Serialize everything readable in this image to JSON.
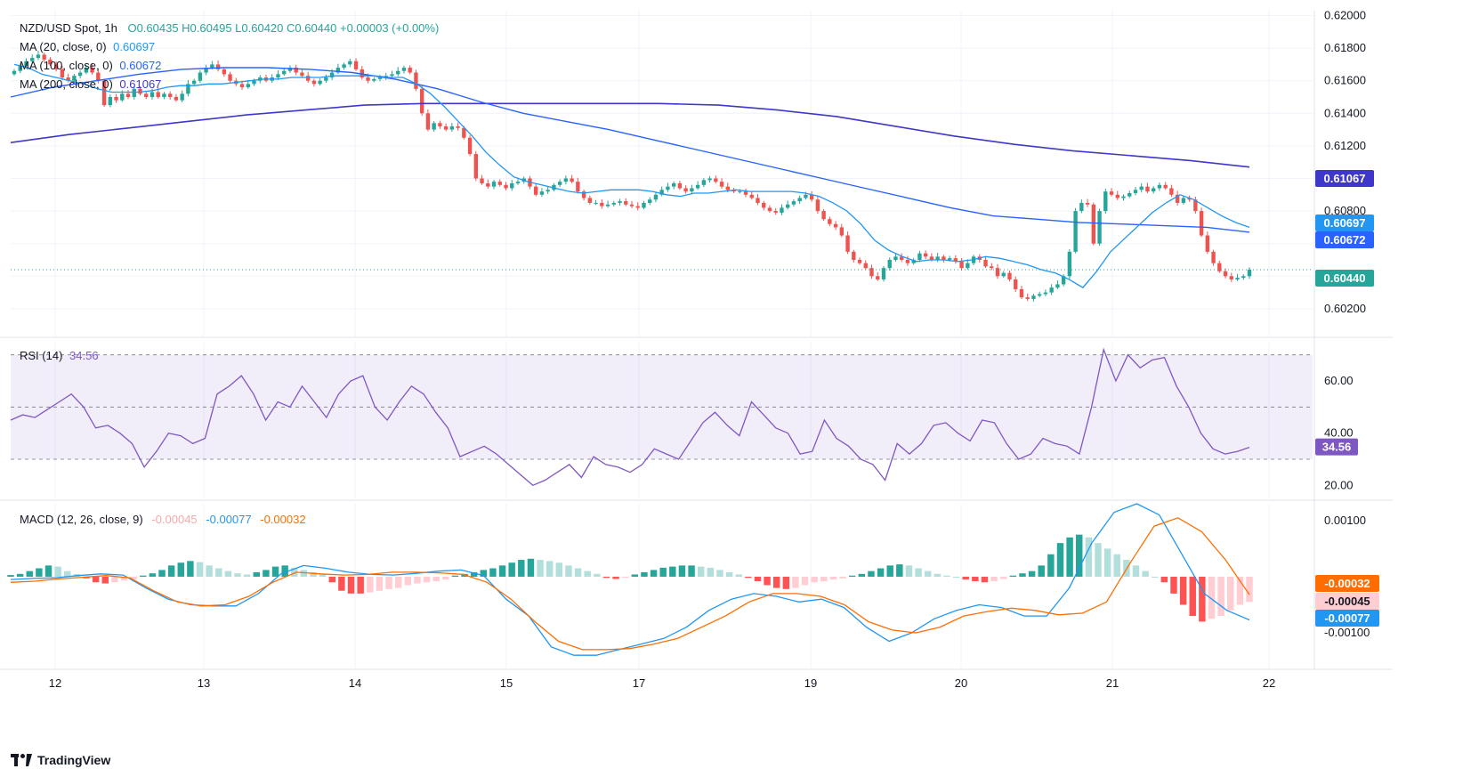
{
  "header": {
    "symbol": "NZD/USD Spot, 1h",
    "ohlc_text": "O0.60435  H0.60495  L0.60420  C0.60440  +0.00003 (+0.00%)",
    "ma20_label": "MA (20, close, 0)",
    "ma20_value": "0.60697",
    "ma100_label": "MA (100, close, 0)",
    "ma100_value": "0.60672",
    "ma200_label": "MA (200, close, 0)",
    "ma200_value": "0.61067"
  },
  "rsi_header": {
    "label": "RSI (14)",
    "value": "34.56"
  },
  "macd_header": {
    "label": "MACD (12, 26, close, 9)",
    "hist": "-0.00045",
    "macd": "-0.00077",
    "signal": "-0.00032"
  },
  "footer": {
    "brand": "TradingView"
  },
  "colors": {
    "up": "#26a69a",
    "down": "#ef5350",
    "ma20": "#2196f3",
    "ma100": "#2962ff",
    "ma200": "#3f37c9",
    "rsi": "#7e57c2",
    "macd": "#2196f3",
    "signal": "#ff6d00",
    "grid": "#f0f3fa",
    "last": "#26a69a"
  },
  "chart_data": [
    {
      "type": "candlestick",
      "title": "NZD/USD Spot, 1h",
      "x_ticks": [
        "12",
        "13",
        "14",
        "15",
        "17",
        "19",
        "20",
        "21",
        "22"
      ],
      "y_ticks": [
        "0.62000",
        "0.61800",
        "0.61600",
        "0.61400",
        "0.61200",
        "0.61000",
        "0.60800",
        "0.60600",
        "0.60400",
        "0.60200"
      ],
      "ylim": [
        0.6003,
        0.6203
      ],
      "price_labels": [
        {
          "value": 0.61067,
          "text": "0.61067",
          "color": "#3f37c9"
        },
        {
          "value": 0.60697,
          "text": "0.60697",
          "color": "#2196f3"
        },
        {
          "value": 0.60672,
          "text": "0.60672",
          "color": "#2962ff"
        },
        {
          "value": 0.6044,
          "text": "0.60440",
          "color": "#26a69a"
        }
      ],
      "close_series": [
        0.6166,
        0.6169,
        0.6172,
        0.6174,
        0.6176,
        0.6173,
        0.617,
        0.6167,
        0.6162,
        0.616,
        0.6163,
        0.6165,
        0.6168,
        0.6165,
        0.616,
        0.6145,
        0.615,
        0.6148,
        0.6152,
        0.615,
        0.6155,
        0.6152,
        0.615,
        0.6153,
        0.615,
        0.6152,
        0.615,
        0.6148,
        0.6152,
        0.6158,
        0.616,
        0.6165,
        0.6168,
        0.617,
        0.6167,
        0.6164,
        0.616,
        0.6158,
        0.6156,
        0.6158,
        0.616,
        0.6162,
        0.616,
        0.6162,
        0.6164,
        0.6166,
        0.6168,
        0.6165,
        0.6163,
        0.616,
        0.6158,
        0.616,
        0.6162,
        0.6165,
        0.6168,
        0.617,
        0.6172,
        0.6167,
        0.6162,
        0.616,
        0.6161,
        0.6162,
        0.6163,
        0.6164,
        0.6166,
        0.6168,
        0.6165,
        0.6155,
        0.614,
        0.613,
        0.6134,
        0.6132,
        0.613,
        0.6132,
        0.6131,
        0.6125,
        0.6115,
        0.61,
        0.6097,
        0.6095,
        0.6098,
        0.6096,
        0.6094,
        0.6097,
        0.6098,
        0.61,
        0.6095,
        0.609,
        0.6092,
        0.6093,
        0.6096,
        0.6098,
        0.61,
        0.6098,
        0.6092,
        0.6088,
        0.6085,
        0.6085,
        0.6083,
        0.6084,
        0.6085,
        0.6086,
        0.6084,
        0.6083,
        0.6082,
        0.6085,
        0.6087,
        0.609,
        0.6093,
        0.6095,
        0.6097,
        0.6094,
        0.6092,
        0.6094,
        0.6096,
        0.6099,
        0.61,
        0.6098,
        0.6095,
        0.6093,
        0.6092,
        0.6092,
        0.609,
        0.6088,
        0.6085,
        0.6082,
        0.608,
        0.6079,
        0.6082,
        0.6084,
        0.6086,
        0.6088,
        0.609,
        0.6087,
        0.608,
        0.6075,
        0.6072,
        0.607,
        0.6065,
        0.6055,
        0.605,
        0.6048,
        0.6045,
        0.604,
        0.6038,
        0.6045,
        0.605,
        0.6052,
        0.605,
        0.6048,
        0.605,
        0.6054,
        0.6052,
        0.605,
        0.6052,
        0.605,
        0.6051,
        0.6049,
        0.6045,
        0.6048,
        0.6052,
        0.605,
        0.6046,
        0.6045,
        0.604,
        0.6042,
        0.6038,
        0.6032,
        0.6027,
        0.6026,
        0.6028,
        0.6029,
        0.603,
        0.6033,
        0.6035,
        0.604,
        0.6055,
        0.608,
        0.6085,
        0.6084,
        0.606,
        0.608,
        0.6092,
        0.609,
        0.6088,
        0.6089,
        0.6091,
        0.6093,
        0.6095,
        0.6092,
        0.6094,
        0.6096,
        0.6094,
        0.609,
        0.6085,
        0.6088,
        0.6087,
        0.608,
        0.6065,
        0.6055,
        0.6048,
        0.6043,
        0.604,
        0.6038,
        0.6039,
        0.604,
        0.6044
      ],
      "ma20_series": [
        0.617,
        0.6168,
        0.6164,
        0.6162,
        0.616,
        0.6158,
        0.6155,
        0.6153,
        0.6153,
        0.6153,
        0.6154,
        0.6156,
        0.6157,
        0.6157,
        0.6158,
        0.6158,
        0.6159,
        0.616,
        0.6161,
        0.6161,
        0.6162,
        0.6162,
        0.6162,
        0.6163,
        0.6163,
        0.6163,
        0.6163,
        0.6162,
        0.6162,
        0.6158,
        0.6152,
        0.6144,
        0.6135,
        0.6126,
        0.6116,
        0.6108,
        0.6101,
        0.6098,
        0.6096,
        0.6094,
        0.6092,
        0.6091,
        0.6092,
        0.6093,
        0.6093,
        0.6093,
        0.6092,
        0.609,
        0.6089,
        0.6091,
        0.6091,
        0.6092,
        0.6093,
        0.6092,
        0.6092,
        0.6092,
        0.6092,
        0.6091,
        0.6089,
        0.6085,
        0.608,
        0.6072,
        0.6062,
        0.6056,
        0.6052,
        0.6049,
        0.605,
        0.605,
        0.6049,
        0.605,
        0.6052,
        0.6051,
        0.6049,
        0.6047,
        0.6044,
        0.6042,
        0.6038,
        0.6033,
        0.6043,
        0.6055,
        0.6063,
        0.6071,
        0.6079,
        0.6085,
        0.609,
        0.6087,
        0.6082,
        0.6077,
        0.6073,
        0.607
      ],
      "ma100_series": [
        0.615,
        0.6156,
        0.616,
        0.6164,
        0.6167,
        0.6168,
        0.6168,
        0.6167,
        0.6165,
        0.6161,
        0.6155,
        0.6147,
        0.614,
        0.6135,
        0.613,
        0.6124,
        0.6118,
        0.6112,
        0.6106,
        0.61,
        0.6094,
        0.6088,
        0.6082,
        0.6077,
        0.6075,
        0.6073,
        0.6072,
        0.6071,
        0.607,
        0.6067
      ],
      "ma200_series": [
        0.6122,
        0.6127,
        0.6131,
        0.6135,
        0.6139,
        0.6142,
        0.6145,
        0.6146,
        0.6146,
        0.6146,
        0.6146,
        0.6146,
        0.6145,
        0.6142,
        0.6138,
        0.6132,
        0.6126,
        0.6121,
        0.6117,
        0.6114,
        0.6111,
        0.6107
      ]
    },
    {
      "type": "line",
      "title": "RSI (14)",
      "y_ticks": [
        "60.00",
        "40.00",
        "20.00"
      ],
      "ylim": [
        15,
        75
      ],
      "bands": {
        "upper": 70,
        "middle": 50,
        "lower": 30
      },
      "last_value": 34.56,
      "values": [
        45,
        47,
        46,
        49,
        52,
        55,
        50,
        42,
        43,
        40,
        36,
        27,
        33,
        40,
        39,
        36,
        38,
        55,
        58,
        62,
        55,
        45,
        52,
        50,
        58,
        52,
        46,
        55,
        60,
        62,
        50,
        45,
        52,
        58,
        55,
        48,
        42,
        31,
        33,
        35,
        32,
        28,
        24,
        20,
        22,
        25,
        28,
        23,
        31,
        28,
        27,
        25,
        28,
        34,
        32,
        30,
        37,
        44,
        48,
        43,
        39,
        52,
        47,
        42,
        40,
        32,
        33,
        45,
        38,
        35,
        30,
        28,
        22,
        36,
        32,
        36,
        43,
        44,
        40,
        37,
        45,
        44,
        36,
        30,
        32,
        38,
        36,
        35,
        32,
        50,
        72,
        60,
        70,
        65,
        68,
        69,
        58,
        50,
        40,
        34,
        32,
        33,
        34.56
      ]
    },
    {
      "type": "bar+line",
      "title": "MACD (12, 26, close, 9)",
      "y_ticks": [
        "0.00100",
        "-0.00100"
      ],
      "ylim": [
        -0.00165,
        0.0013
      ],
      "last": {
        "macd": -0.00077,
        "signal": -0.00032,
        "hist": -0.00045
      },
      "macd_line": [
        -5e-05,
        -3e-05,
        -2e-05,
        2e-05,
        5e-05,
        3e-05,
        -0.0002,
        -0.0004,
        -0.0005,
        -0.00052,
        -0.00052,
        -0.0003,
        5e-05,
        0.0002,
        0.00015,
        8e-05,
        4e-05,
        3e-05,
        6e-05,
        0.0001,
        0.00012,
        2e-05,
        -0.0004,
        -0.0007,
        -0.00125,
        -0.0014,
        -0.0014,
        -0.0013,
        -0.0012,
        -0.0011,
        -0.0009,
        -0.0006,
        -0.0004,
        -0.0003,
        -0.00035,
        -0.00045,
        -0.0004,
        -0.00055,
        -0.0009,
        -0.00115,
        -0.001,
        -0.00075,
        -0.0006,
        -0.0005,
        -0.00055,
        -0.0007,
        -0.0007,
        -0.0002,
        0.0006,
        0.00115,
        0.0013,
        0.0011,
        0.0004,
        -0.0003,
        -0.0006,
        -0.00077
      ],
      "signal_line": [
        -0.0001,
        -8e-05,
        -4e-05,
        -1e-05,
        2e-05,
        -2e-05,
        -0.00025,
        -0.00045,
        -0.00052,
        -0.0005,
        -0.00035,
        -0.0001,
        8e-05,
        5e-05,
        3e-05,
        4e-05,
        8e-05,
        8e-05,
        7e-05,
        4e-05,
        -0.0001,
        -0.0004,
        -0.0008,
        -0.00115,
        -0.0013,
        -0.0013,
        -0.00128,
        -0.0012,
        -0.0011,
        -0.0009,
        -0.0007,
        -0.00045,
        -0.0003,
        -0.0003,
        -0.00035,
        -0.0005,
        -0.0008,
        -0.00095,
        -0.001,
        -0.0009,
        -0.0007,
        -0.00062,
        -0.00056,
        -0.0006,
        -0.00068,
        -0.00065,
        -0.00045,
        0.00025,
        0.0009,
        0.00105,
        0.0008,
        0.0003,
        -0.00032
      ],
      "histogram": [
        3e-05,
        5e-05,
        0.0001,
        0.00015,
        0.0002,
        0.00018,
        0.0001,
        5e-05,
        -3e-05,
        -0.0001,
        -0.00012,
        -0.0001,
        -7e-05,
        -5e-05,
        2e-05,
        6e-05,
        0.00012,
        0.0002,
        0.00025,
        0.00028,
        0.00026,
        0.0002,
        0.00015,
        0.0001,
        6e-05,
        4e-05,
        8e-05,
        0.00012,
        0.00018,
        0.0002,
        0.00016,
        0.00012,
        8e-05,
        4e-05,
        -0.0001,
        -0.00025,
        -0.0003,
        -0.0003,
        -0.00028,
        -0.00025,
        -0.00022,
        -0.0002,
        -0.00015,
        -0.00012,
        -0.0001,
        -8e-05,
        -5e-05,
        2e-05,
        5e-05,
        8e-05,
        0.00012,
        0.00015,
        0.0002,
        0.00025,
        0.0003,
        0.00032,
        0.0003,
        0.00028,
        0.00025,
        0.0002,
        0.00015,
        0.0001,
        5e-05,
        -2e-05,
        -4e-05,
        -2e-05,
        4e-05,
        8e-05,
        0.00012,
        0.00016,
        0.00018,
        0.0002,
        0.0002,
        0.00018,
        0.00016,
        0.00012,
        8e-05,
        4e-05,
        -2e-05,
        -8e-05,
        -0.00015,
        -0.0002,
        -0.00022,
        -0.0002,
        -0.00015,
        -0.0001,
        -8e-05,
        -5e-05,
        -3e-05,
        2e-05,
        5e-05,
        0.0001,
        0.00015,
        0.0002,
        0.00022,
        0.0002,
        0.00015,
        0.0001,
        5e-05,
        2e-05,
        0.0,
        -5e-05,
        -8e-05,
        -0.0001,
        -8e-05,
        -4e-05,
        2e-05,
        6e-05,
        0.0001,
        0.0002,
        0.0004,
        0.0006,
        0.0007,
        0.00075,
        0.0007,
        0.0006,
        0.0005,
        0.0004,
        0.0003,
        0.0002,
        0.0001,
        0.0,
        -0.0001,
        -0.0003,
        -0.0005,
        -0.0007,
        -0.0008,
        -0.00075,
        -0.0007,
        -0.0006,
        -0.0005,
        -0.00045
      ]
    }
  ]
}
